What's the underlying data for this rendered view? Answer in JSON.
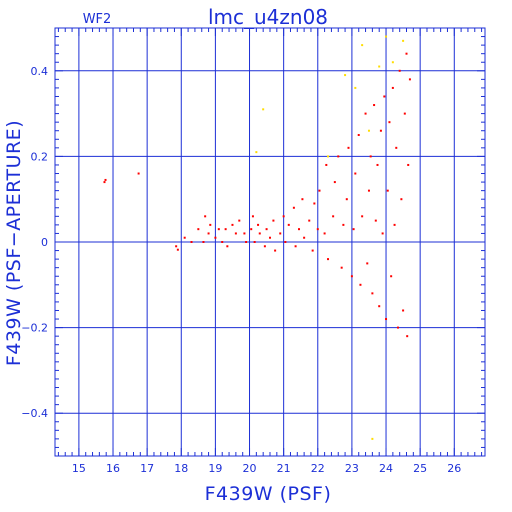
{
  "chart_data": {
    "type": "scatter",
    "title": "lmc_u4zn08",
    "panel_label": "WF2",
    "xlabel": "F439W (PSF)",
    "ylabel": "F439W (PSF−APERTURE)",
    "xlim": [
      14.3,
      26.9
    ],
    "ylim": [
      -0.5,
      0.5
    ],
    "x_ticks": [
      15,
      16,
      17,
      18,
      19,
      20,
      21,
      22,
      23,
      24,
      25,
      26
    ],
    "x_tick_labels": [
      "15",
      "16",
      "17",
      "18",
      "19",
      "20",
      "21",
      "22",
      "23",
      "24",
      "25",
      "26"
    ],
    "y_ticks": [
      -0.4,
      -0.2,
      0,
      0.2,
      0.4
    ],
    "y_tick_labels": [
      "−0.4",
      "−0.2",
      "0",
      "0.2",
      "0.4"
    ],
    "grid": true,
    "colors": {
      "axis": "#1c2fd6",
      "grid": "#1c2fd6",
      "series_main": "#ff0000",
      "series_flagged": "#ffdd00"
    },
    "series": [
      {
        "color": "#ff0000",
        "points": [
          [
            15.75,
            0.14
          ],
          [
            15.78,
            0.145
          ],
          [
            16.75,
            0.16
          ],
          [
            17.85,
            -0.01
          ],
          [
            17.9,
            -0.018
          ],
          [
            18.1,
            0.01
          ],
          [
            18.3,
            0.0
          ],
          [
            18.5,
            0.03
          ],
          [
            18.65,
            0.0
          ],
          [
            18.7,
            0.06
          ],
          [
            18.8,
            0.02
          ],
          [
            18.85,
            0.04
          ],
          [
            19.0,
            0.01
          ],
          [
            19.1,
            0.03
          ],
          [
            19.2,
            0.0
          ],
          [
            19.3,
            0.03
          ],
          [
            19.35,
            -0.01
          ],
          [
            19.5,
            0.04
          ],
          [
            19.6,
            0.02
          ],
          [
            19.7,
            0.05
          ],
          [
            19.85,
            0.02
          ],
          [
            19.9,
            0.0
          ],
          [
            20.05,
            0.03
          ],
          [
            20.1,
            0.06
          ],
          [
            20.15,
            0.0
          ],
          [
            20.25,
            0.04
          ],
          [
            20.3,
            0.02
          ],
          [
            20.45,
            -0.01
          ],
          [
            20.5,
            0.03
          ],
          [
            20.6,
            0.01
          ],
          [
            20.7,
            0.05
          ],
          [
            20.75,
            -0.02
          ],
          [
            20.9,
            0.02
          ],
          [
            21.0,
            0.06
          ],
          [
            21.05,
            0.0
          ],
          [
            21.15,
            0.04
          ],
          [
            21.3,
            0.08
          ],
          [
            21.35,
            -0.01
          ],
          [
            21.45,
            0.03
          ],
          [
            21.55,
            0.1
          ],
          [
            21.6,
            0.01
          ],
          [
            21.75,
            0.05
          ],
          [
            21.85,
            -0.02
          ],
          [
            21.9,
            0.09
          ],
          [
            22.0,
            0.03
          ],
          [
            22.05,
            0.12
          ],
          [
            22.2,
            0.02
          ],
          [
            22.25,
            0.18
          ],
          [
            22.3,
            -0.04
          ],
          [
            22.45,
            0.06
          ],
          [
            22.5,
            0.14
          ],
          [
            22.6,
            0.2
          ],
          [
            22.7,
            -0.06
          ],
          [
            22.75,
            0.04
          ],
          [
            22.85,
            0.1
          ],
          [
            22.9,
            0.22
          ],
          [
            23.0,
            -0.08
          ],
          [
            23.05,
            0.03
          ],
          [
            23.1,
            0.16
          ],
          [
            23.2,
            0.25
          ],
          [
            23.25,
            -0.1
          ],
          [
            23.3,
            0.06
          ],
          [
            23.4,
            0.3
          ],
          [
            23.45,
            -0.05
          ],
          [
            23.5,
            0.12
          ],
          [
            23.55,
            0.2
          ],
          [
            23.6,
            -0.12
          ],
          [
            23.65,
            0.32
          ],
          [
            23.7,
            0.05
          ],
          [
            23.75,
            0.18
          ],
          [
            23.8,
            -0.15
          ],
          [
            23.85,
            0.26
          ],
          [
            23.9,
            0.02
          ],
          [
            23.95,
            0.34
          ],
          [
            24.0,
            -0.18
          ],
          [
            24.05,
            0.12
          ],
          [
            24.1,
            0.28
          ],
          [
            24.15,
            -0.08
          ],
          [
            24.2,
            0.36
          ],
          [
            24.25,
            0.04
          ],
          [
            24.3,
            0.22
          ],
          [
            24.35,
            -0.2
          ],
          [
            24.4,
            0.4
          ],
          [
            24.45,
            0.1
          ],
          [
            24.5,
            -0.16
          ],
          [
            24.55,
            0.3
          ],
          [
            24.6,
            0.44
          ],
          [
            24.62,
            -0.22
          ],
          [
            24.65,
            0.18
          ],
          [
            24.7,
            0.38
          ]
        ]
      },
      {
        "color": "#ffdd00",
        "points": [
          [
            20.2,
            0.21
          ],
          [
            20.4,
            0.31
          ],
          [
            22.3,
            0.2
          ],
          [
            22.8,
            0.39
          ],
          [
            23.1,
            0.36
          ],
          [
            23.3,
            0.46
          ],
          [
            23.5,
            0.26
          ],
          [
            23.6,
            -0.46
          ],
          [
            23.8,
            0.41
          ],
          [
            24.0,
            0.48
          ],
          [
            24.2,
            0.42
          ],
          [
            24.5,
            0.47
          ]
        ]
      }
    ]
  }
}
